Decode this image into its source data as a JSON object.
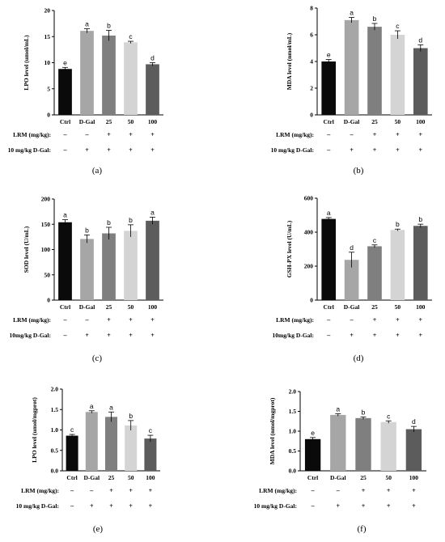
{
  "figure": {
    "treatment_rows": {
      "lrm_label": "LRM (mg/kg):",
      "dgal_label_a": "10 mg/kg D-Gal:",
      "dgal_label_c": "10mg/kg D-Gal:",
      "lrm_marks": [
        "–",
        "–",
        "+",
        "+",
        "+"
      ],
      "dgal_marks": [
        "–",
        "+",
        "+",
        "+",
        "+"
      ]
    },
    "bar_colors": [
      "#0a0a0a",
      "#a6a6a6",
      "#7f7f7f",
      "#d4d4d4",
      "#5c5c5c"
    ]
  },
  "chart_data": [
    {
      "type": "bar",
      "panel": "(a)",
      "ylabel": "LPO level (umol/mL)",
      "ylim": [
        0,
        20
      ],
      "yticks": [
        0,
        5,
        10,
        15,
        20
      ],
      "categories": [
        "Ctrl",
        "D-Gal",
        "25",
        "50",
        "100"
      ],
      "values": [
        8.8,
        16.1,
        15.2,
        13.9,
        9.7
      ],
      "errors": [
        0.3,
        0.4,
        1.0,
        0.2,
        0.3
      ],
      "letters": [
        "e",
        "a",
        "b",
        "c",
        "d"
      ],
      "dgal_key": "dgal_label_a"
    },
    {
      "type": "bar",
      "panel": "(b)",
      "ylabel": "MDA level (nmol/mL)",
      "ylim": [
        0,
        8
      ],
      "yticks": [
        0,
        2,
        4,
        6,
        8
      ],
      "categories": [
        "Ctrl",
        "D-Gal",
        "25",
        "50",
        "100"
      ],
      "values": [
        4.0,
        7.1,
        6.6,
        6.0,
        5.0
      ],
      "errors": [
        0.15,
        0.2,
        0.25,
        0.3,
        0.25
      ],
      "letters": [
        "e",
        "a",
        "b",
        "c",
        "d"
      ],
      "dgal_key": "dgal_label_a"
    },
    {
      "type": "bar",
      "panel": "(c)",
      "ylabel": "SOD level (U/mL)",
      "ylim": [
        0,
        200
      ],
      "yticks": [
        0,
        50,
        100,
        150,
        200
      ],
      "categories": [
        "Ctrl",
        "D-Gal",
        "25",
        "50",
        "100"
      ],
      "values": [
        154,
        121,
        132,
        137,
        157
      ],
      "errors": [
        5,
        8,
        12,
        12,
        7
      ],
      "letters": [
        "a",
        "b",
        "b",
        "b",
        "a"
      ],
      "dgal_key": "dgal_label_c"
    },
    {
      "type": "bar",
      "panel": "(d)",
      "ylabel": "GSH-PX level (U/mL)",
      "ylim": [
        0,
        600
      ],
      "yticks": [
        0,
        200,
        400,
        600
      ],
      "categories": [
        "Ctrl",
        "D-Gal",
        "25",
        "50",
        "100"
      ],
      "values": [
        478,
        237,
        317,
        413,
        437
      ],
      "errors": [
        8,
        45,
        8,
        5,
        10
      ],
      "letters": [
        "a",
        "d",
        "c",
        "b",
        "b"
      ],
      "dgal_key": "dgal_label_c"
    },
    {
      "type": "bar",
      "panel": "(e)",
      "ylabel": "LPO level (umol/mgprot)",
      "ylim": [
        0,
        2.0
      ],
      "yticks": [
        "0.0",
        "0.5",
        "1.0",
        "1.5",
        "2.0"
      ],
      "categories": [
        "Ctrl",
        "D-Gal",
        "25",
        "50",
        "100"
      ],
      "values": [
        0.86,
        1.44,
        1.32,
        1.11,
        0.79
      ],
      "errors": [
        0.03,
        0.03,
        0.12,
        0.12,
        0.08
      ],
      "letters": [
        "c",
        "a",
        "a",
        "b",
        "c"
      ],
      "dgal_key": "dgal_label_a"
    },
    {
      "type": "bar",
      "panel": "(f)",
      "ylabel": "MDA level (nmol/mgprot)",
      "ylim": [
        0,
        2.0
      ],
      "yticks": [
        "0.0",
        "0.5",
        "1.0",
        "1.5",
        "2.0"
      ],
      "categories": [
        "Ctrl",
        "D-Gal",
        "25",
        "50",
        "100"
      ],
      "values": [
        0.8,
        1.41,
        1.33,
        1.23,
        1.05
      ],
      "errors": [
        0.04,
        0.03,
        0.03,
        0.03,
        0.07
      ],
      "letters": [
        "e",
        "a",
        "b",
        "c",
        "d"
      ],
      "dgal_key": "dgal_label_a"
    }
  ]
}
